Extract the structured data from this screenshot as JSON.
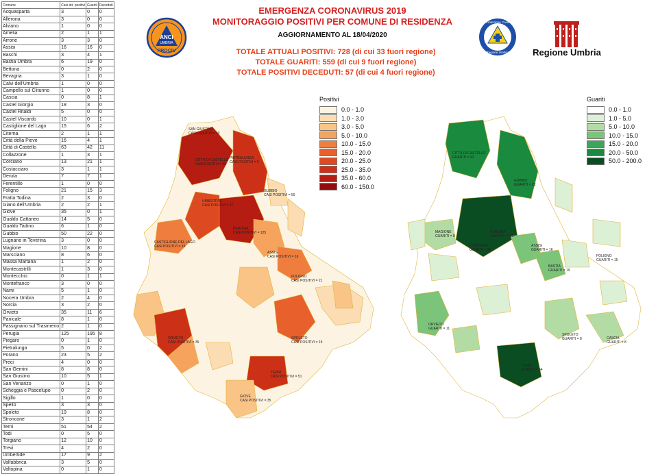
{
  "header": {
    "title_line1": "EMERGENZA CORONAVIRUS 2019",
    "title_line2": "MONITORAGGIO POSITIVI PER COMUNE DI RESIDENZA",
    "update": "AGGIORNAMENTO AL 18/04/2020",
    "total_positive": "TOTALE ATTUALI POSITIVI: 728 (di cui 33 fuori regione)",
    "total_recovered": "TOTALE GUARITI: 559 (di cui 9 fuori regione)",
    "total_deceased": "TOTALE POSITIVI DECEDUTI: 57 (di cui 4 fuori regione)"
  },
  "logos": {
    "anci": {
      "line1": "ANCI",
      "line2": "UMBRIA",
      "line3": "PROCIV"
    },
    "protezione_civile": {
      "line1": "Protezione Civile",
      "line2": "Regione Umbria"
    },
    "regione": {
      "name": "Regione Umbria"
    }
  },
  "table": {
    "headers": [
      "Comune",
      "Casi att. positivi",
      "Guariti",
      "Deceduti"
    ],
    "rows": [
      [
        "Acquasparta",
        "3",
        "0",
        "0"
      ],
      [
        "Allerona",
        "3",
        "0",
        "0"
      ],
      [
        "Alviano",
        "1",
        "0",
        "0"
      ],
      [
        "Amelia",
        "2",
        "1",
        "1"
      ],
      [
        "Arrone",
        "3",
        "3",
        "0"
      ],
      [
        "Assisi",
        "16",
        "16",
        "0"
      ],
      [
        "Baschi",
        "3",
        "4",
        "1"
      ],
      [
        "Bastia Umbra",
        "6",
        "19",
        "0"
      ],
      [
        "Bettona",
        "0",
        "2",
        "0"
      ],
      [
        "Bevagna",
        "3",
        "1",
        "0"
      ],
      [
        "Calvi dell'Umbria",
        "1",
        "0",
        "0"
      ],
      [
        "Campello sul Clitunno",
        "1",
        "0",
        "0"
      ],
      [
        "Cascia",
        "0",
        "8",
        "1"
      ],
      [
        "Castel Giorgio",
        "18",
        "3",
        "0"
      ],
      [
        "Castel Ritaldi",
        "5",
        "0",
        "0"
      ],
      [
        "Castel Viscardo",
        "10",
        "0",
        "1"
      ],
      [
        "Castiglione del Lago",
        "15",
        "6",
        "2"
      ],
      [
        "Citerna",
        "2",
        "1",
        "1"
      ],
      [
        "Città della Pieve",
        "16",
        "4",
        "1"
      ],
      [
        "Città  di Castello",
        "63",
        "42",
        "11"
      ],
      [
        "Collazzone",
        "1",
        "3",
        "1"
      ],
      [
        "Corciano",
        "13",
        "21",
        "1"
      ],
      [
        "Costacciaro",
        "3",
        "1",
        "1"
      ],
      [
        "Deruta",
        "7",
        "7",
        "1"
      ],
      [
        "Ferentillo",
        "1",
        "0",
        "0"
      ],
      [
        "Foligno",
        "21",
        "15",
        "3"
      ],
      [
        "Fratta Todina",
        "2",
        "3",
        "0"
      ],
      [
        "Giano dell'Umbria",
        "2",
        "2",
        "1"
      ],
      [
        "Giove",
        "35",
        "0",
        "1"
      ],
      [
        "Gualdo Cattaneo",
        "14",
        "5",
        "0"
      ],
      [
        "Gualdo Tadino",
        "6",
        "1",
        "0"
      ],
      [
        "Gubbio",
        "50",
        "22",
        "0"
      ],
      [
        "Lugnano in Teverina",
        "3",
        "0",
        "0"
      ],
      [
        "Magione",
        "10",
        "8",
        "0"
      ],
      [
        "Marsciano",
        "8",
        "6",
        "0"
      ],
      [
        "Massa Martana",
        "1",
        "2",
        "0"
      ],
      [
        "Montecastrilli",
        "1",
        "3",
        "0"
      ],
      [
        "Montecchio",
        "0",
        "1",
        "1"
      ],
      [
        "Montefranco",
        "3",
        "0",
        "0"
      ],
      [
        "Narni",
        "5",
        "1",
        "0"
      ],
      [
        "Nocera Umbra",
        "2",
        "4",
        "0"
      ],
      [
        "Norcia",
        "3",
        "2",
        "0"
      ],
      [
        "Orvieto",
        "35",
        "11",
        "6"
      ],
      [
        "Panicale",
        "8",
        "1",
        "0"
      ],
      [
        "Passignano sul Trasimeno",
        "2",
        "1",
        "0"
      ],
      [
        "Perugia",
        "125",
        "195",
        "8"
      ],
      [
        "Piegaro",
        "0",
        "1",
        "0"
      ],
      [
        "Pietralunga",
        "5",
        "0",
        "2"
      ],
      [
        "Porano",
        "23",
        "5",
        "2"
      ],
      [
        "Preci",
        "4",
        "0",
        "0"
      ],
      [
        "San Gemini",
        "8",
        "8",
        "0"
      ],
      [
        "San Giustino",
        "10",
        "5",
        "1"
      ],
      [
        "San Venanzo",
        "0",
        "1",
        "0"
      ],
      [
        "Scheggia e Pascelupo",
        "0",
        "2",
        "0"
      ],
      [
        "Sigillo",
        "1",
        "0",
        "0"
      ],
      [
        "Spello",
        "3",
        "3",
        "0"
      ],
      [
        "Spoleto",
        "19",
        "8",
        "0"
      ],
      [
        "Stroncone",
        "3",
        "1",
        "2"
      ],
      [
        "Terni",
        "51",
        "54",
        "2"
      ],
      [
        "Todi",
        "0",
        "5",
        "0"
      ],
      [
        "Torgiano",
        "12",
        "10",
        "0"
      ],
      [
        "Trevi",
        "4",
        "2",
        "0"
      ],
      [
        "Umbertide",
        "17",
        "9",
        "2"
      ],
      [
        "Valfabbrica",
        "3",
        "5",
        "0"
      ],
      [
        "Valtopina",
        "0",
        "1",
        "0"
      ]
    ]
  },
  "legend_positivi": {
    "title": "Positivi",
    "items": [
      {
        "label": "0.0 - 1.0",
        "color": "#fdf3e3"
      },
      {
        "label": "1.0 - 3.0",
        "color": "#fbdcb3"
      },
      {
        "label": "3.0 - 5.0",
        "color": "#f9c486"
      },
      {
        "label": "5.0 - 10.0",
        "color": "#f6a35e"
      },
      {
        "label": "10.0 - 15.0",
        "color": "#ef7e3e"
      },
      {
        "label": "15.0 - 20.0",
        "color": "#e8602c"
      },
      {
        "label": "20.0 - 25.0",
        "color": "#dd4a22"
      },
      {
        "label": "25.0 - 35.0",
        "color": "#cc3017"
      },
      {
        "label": "35.0 - 60.0",
        "color": "#b51c12"
      },
      {
        "label": "60.0 - 150.0",
        "color": "#950c0c"
      }
    ]
  },
  "legend_guariti": {
    "title": "Guariti",
    "items": [
      {
        "label": "0.0 - 1.0",
        "color": "#ffffff"
      },
      {
        "label": "1.0 - 5.0",
        "color": "#dcf0d5"
      },
      {
        "label": "5.0 - 10.0",
        "color": "#b2dca4"
      },
      {
        "label": "10.0 - 15.0",
        "color": "#7cc47a"
      },
      {
        "label": "15.0 - 20.0",
        "color": "#3da55a"
      },
      {
        "label": "20.0 - 50.0",
        "color": "#1a8a3e"
      },
      {
        "label": "50.0 - 200.0",
        "color": "#0b4d22"
      }
    ]
  },
  "map_positivi_labels": [
    {
      "text": "SAN GIUSTINO",
      "class": "CASI POSITIVI = 10"
    },
    {
      "text": "CITTÀ DI CASTELLO",
      "class": "CASI POSITIVI = 63"
    },
    {
      "text": "PIETRALUNGA",
      "class": "CASI POSITIVI = 5"
    },
    {
      "text": "GUBBIO",
      "class": "CASI POSITIVI = 50"
    },
    {
      "text": "UMBERTIDE",
      "class": "CASI POSITIVI = 17"
    },
    {
      "text": "PERUGIA",
      "class": "CASI POSITIVI = 125"
    },
    {
      "text": "ASSISI",
      "class": "CASI POSITIVI = 16"
    },
    {
      "text": "FOLIGNO",
      "class": "CASI POSITIVI = 21"
    },
    {
      "text": "SPOLETO",
      "class": "CASI POSITIVI = 19"
    },
    {
      "text": "TERNI",
      "class": "CASI POSITIVI = 51"
    },
    {
      "text": "ORVIETO",
      "class": "CASI POSITIVI = 35"
    },
    {
      "text": "GIOVE",
      "class": "CASI POSITIVI = 35"
    },
    {
      "text": "CASTIGLIONE DEL LAGO",
      "class": "CASI POSITIVI = 15"
    }
  ],
  "map_guariti_labels": [
    {
      "text": "CITTÀ DI CASTELLO",
      "class": "GUARITI = 42"
    },
    {
      "text": "GUBBIO",
      "class": "GUARITI = 22"
    },
    {
      "text": "PERUGIA",
      "class": "GUARITI = 195"
    },
    {
      "text": "ASSISI",
      "class": "GUARITI = 16"
    },
    {
      "text": "BASTIA",
      "class": "GUARITI = 19"
    },
    {
      "text": "FOLIGNO",
      "class": "GUARITI = 15"
    },
    {
      "text": "CORCIANO",
      "class": "GUARITI = 21"
    },
    {
      "text": "TERNI",
      "class": "GUARITI = 54"
    },
    {
      "text": "ORVIETO",
      "class": "GUARITI = 11"
    },
    {
      "text": "SPOLETO",
      "class": "GUARITI = 8"
    },
    {
      "text": "CASCIA",
      "class": "GUARITI = 8"
    },
    {
      "text": "MAGIONE",
      "class": "GUARITI = 8"
    }
  ]
}
